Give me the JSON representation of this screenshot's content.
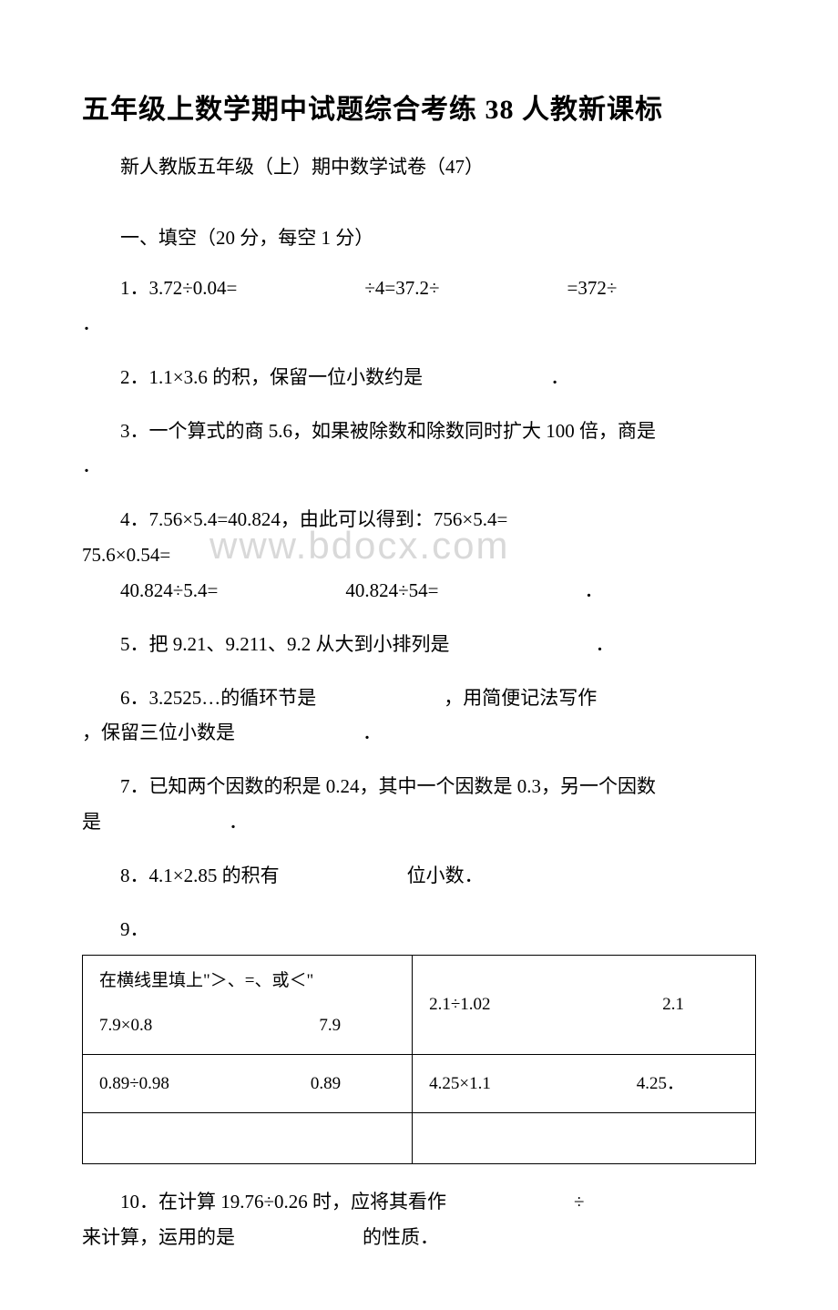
{
  "title": "五年级上数学期中试题综合考练 38 人教新课标",
  "subtitle": "新人教版五年级（上）期中数学试卷（47）",
  "section1": {
    "header": "一、填空（20 分，每空 1 分）",
    "q1": {
      "num": "1．",
      "part1": "3.72÷0.04=",
      "part2": "÷4=37.2÷",
      "part3": "=372÷",
      "end": "．"
    },
    "q2": {
      "num": "2．",
      "text": "1.1×3.6 的积，保留一位小数约是",
      "end": "．"
    },
    "q3": {
      "num": "3．",
      "text": "一个算式的商 5.6，如果被除数和除数同时扩大 100 倍，商是",
      "end": "．"
    },
    "q4": {
      "num": "4．",
      "line1a": "7.56×5.4=40.824，由此可以得到：756×5.4=",
      "line1b": "75.6×0.54=",
      "line2a": "40.824÷5.4=",
      "line2b": "40.824÷54=",
      "end": "．"
    },
    "q5": {
      "num": "5．",
      "text": "把 9.21、9.211、9.2 从大到小排列是",
      "end": "．"
    },
    "q6": {
      "num": "6．",
      "part1": "3.2525…的循环节是",
      "part2": "，用简便记法写作",
      "part3": "，保留三位小数是",
      "end": "．"
    },
    "q7": {
      "num": "7．",
      "part1": "已知两个因数的积是 0.24，其中一个因数是 0.3，另一个因数",
      "part2": "是",
      "end": "．"
    },
    "q8": {
      "num": "8．",
      "part1": "4.1×2.85 的积有",
      "part2": "位小数．"
    },
    "q9": {
      "num": "9．",
      "table": {
        "r1c1_line1": "在横线里填上\"＞、=、或＜\"",
        "r1c1_line2_left": "7.9×0.8",
        "r1c1_line2_right": "7.9",
        "r1c2_left": "2.1÷1.02",
        "r1c2_right": "2.1",
        "r2c1_left": "0.89÷0.98",
        "r2c1_right": "0.89",
        "r2c2_left": "4.25×1.1",
        "r2c2_right": "4.25．"
      }
    },
    "q10": {
      "num": "10．",
      "part1": "在计算 19.76÷0.26 时，应将其看作",
      "part2": "÷",
      "part3": "来计算，运用的是",
      "part4": "的性质．"
    }
  },
  "watermark": "www.bdocx.com",
  "colors": {
    "text": "#000000",
    "background": "#ffffff",
    "watermark": "#d9d9d9",
    "border": "#000000"
  },
  "fonts": {
    "title_size": 30,
    "body_size": 21,
    "table_size": 19,
    "watermark_size": 42
  }
}
